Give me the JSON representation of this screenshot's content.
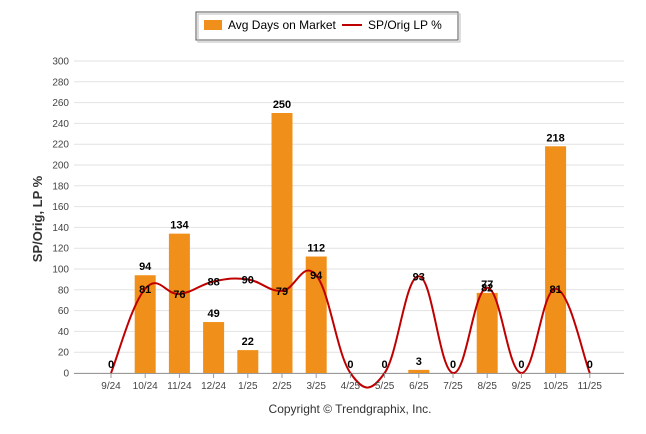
{
  "chart_data": {
    "type": "bar",
    "categories": [
      "9/24",
      "10/24",
      "11/24",
      "12/24",
      "1/25",
      "2/25",
      "3/25",
      "4/25",
      "5/25",
      "6/25",
      "7/25",
      "8/25",
      "9/25",
      "10/25",
      "11/25"
    ],
    "series": [
      {
        "name": "Avg Days on Market",
        "type": "bar",
        "color": "#F0901A",
        "values": [
          0,
          94,
          134,
          49,
          22,
          250,
          112,
          0,
          0,
          3,
          0,
          77,
          0,
          218,
          0
        ]
      },
      {
        "name": "SP/Orig LP %",
        "type": "line",
        "color": "#C00000",
        "values": [
          0,
          81,
          76,
          88,
          90,
          79,
          94,
          0,
          0,
          93,
          0,
          82,
          0,
          81,
          0
        ]
      }
    ],
    "ylabel": "SP/Orig, LP %",
    "xlabel": "",
    "ylim": [
      0,
      300
    ],
    "yticks": [
      0,
      20,
      40,
      60,
      80,
      100,
      120,
      140,
      160,
      180,
      200,
      220,
      240,
      260,
      280,
      300
    ],
    "grid": true,
    "legend_position": "top-center"
  },
  "footer": {
    "copyright": "Copyright © Trendgraphix, Inc."
  }
}
